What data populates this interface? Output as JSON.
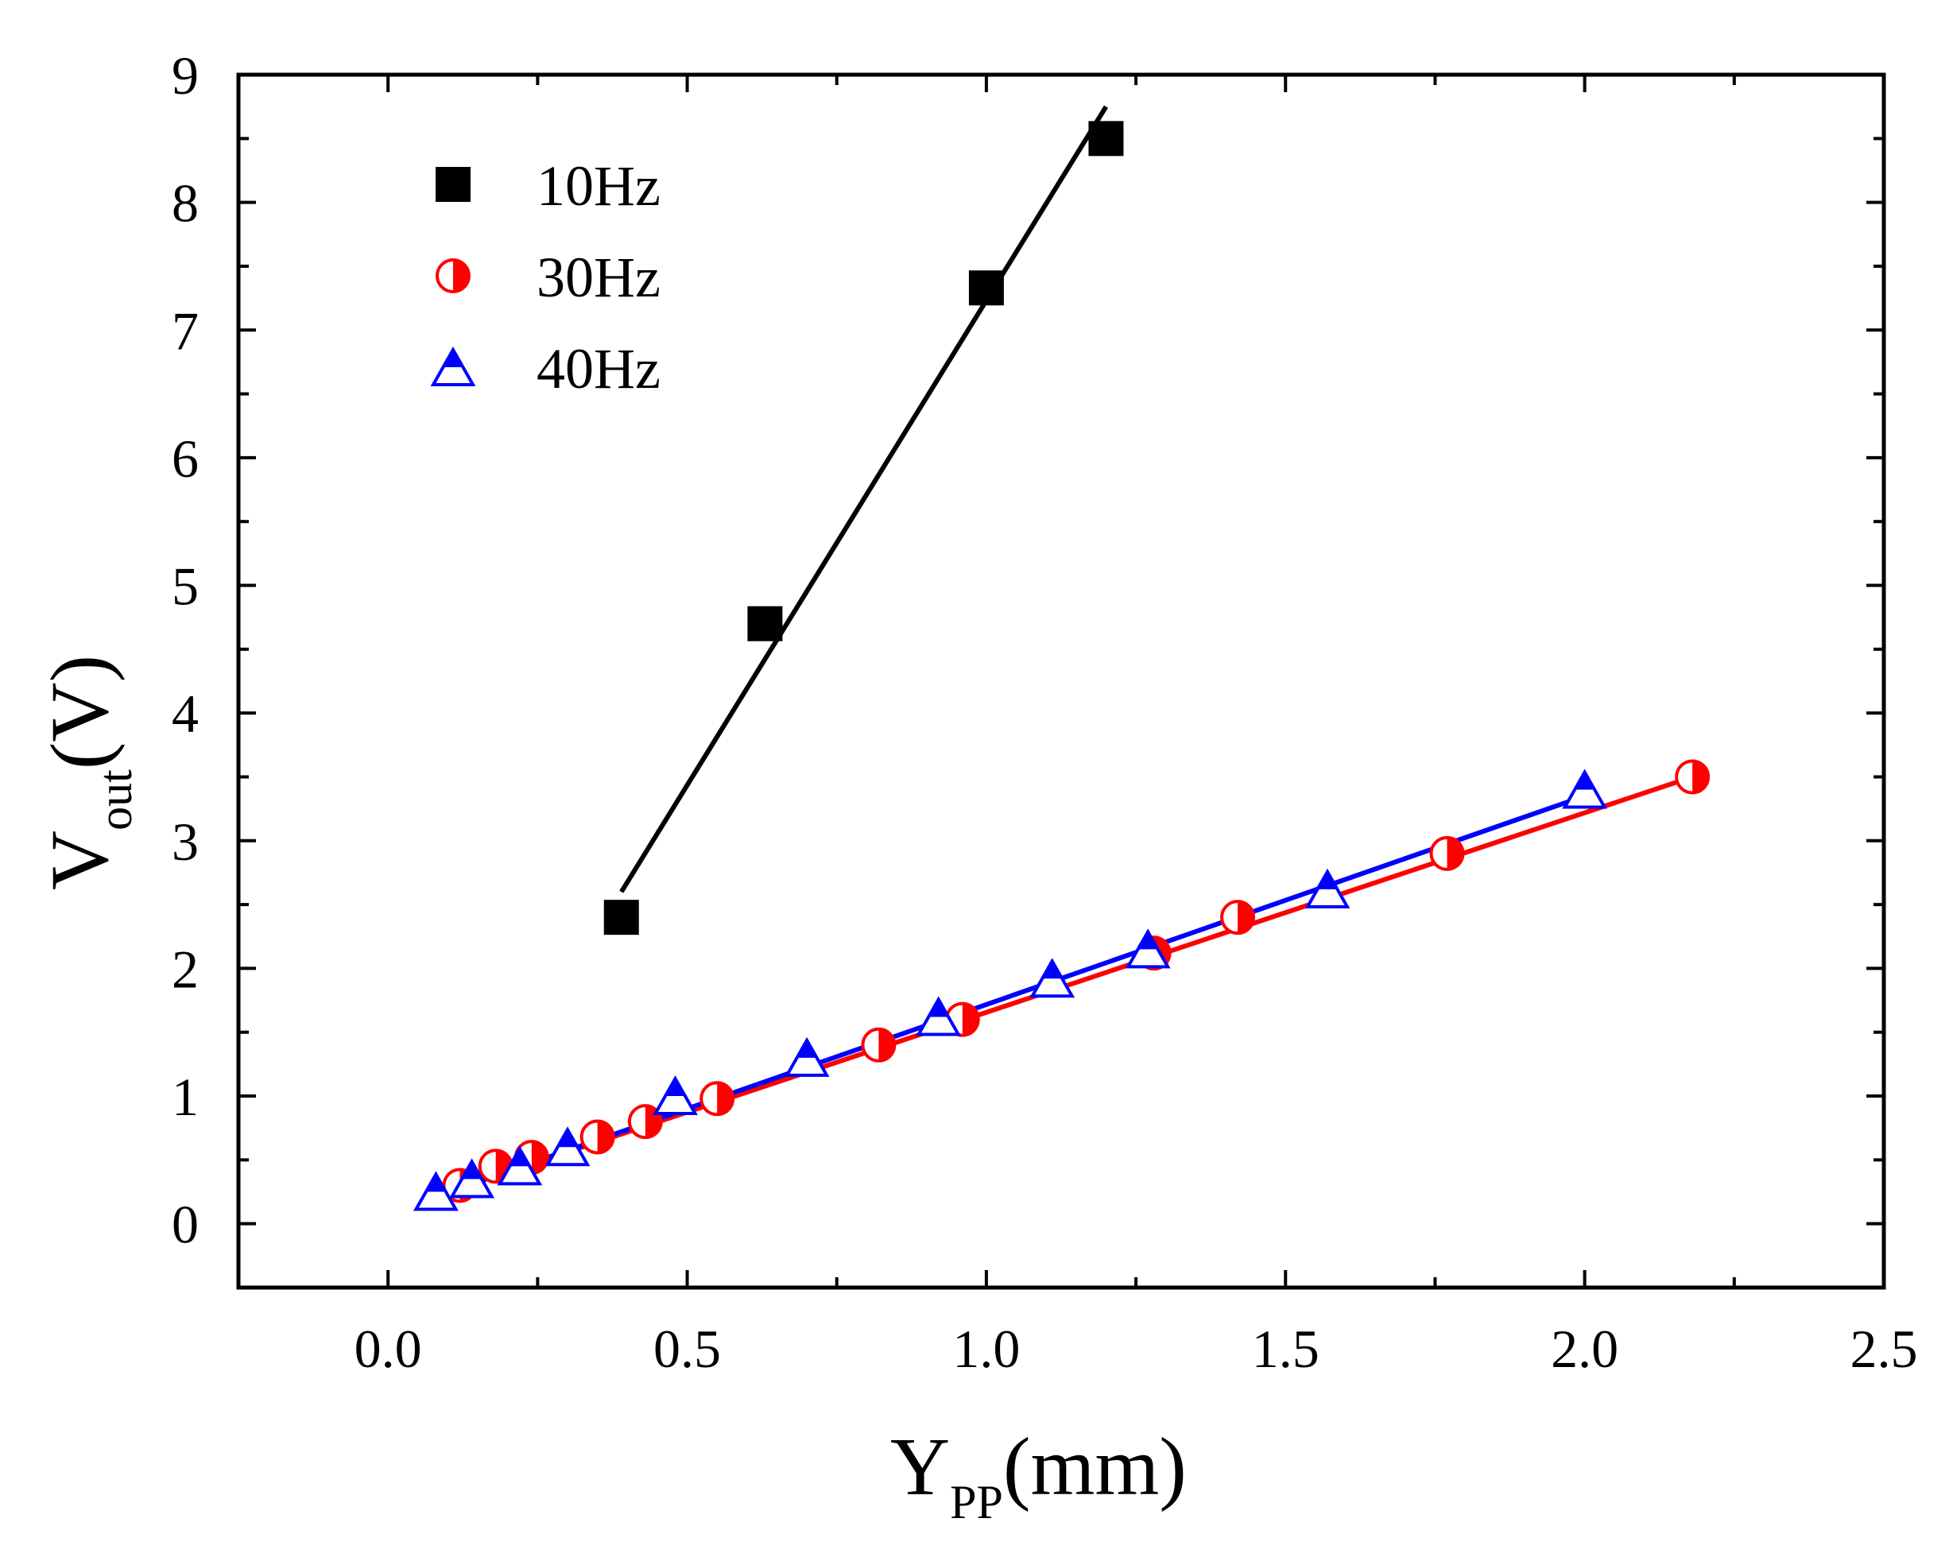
{
  "chart_data": {
    "type": "scatter",
    "title": "",
    "xlabel": {
      "main": "Y",
      "sub": "PP",
      "suffix": "(mm)"
    },
    "ylabel": {
      "main": "V",
      "sub": "out",
      "suffix": "(V)"
    },
    "xlim": [
      -0.25,
      2.5
    ],
    "ylim": [
      -0.5,
      9
    ],
    "xticks": [
      "0.0",
      "0.5",
      "1.0",
      "1.5",
      "2.0",
      "2.5"
    ],
    "yticks": [
      "0",
      "1",
      "2",
      "3",
      "4",
      "5",
      "6",
      "7",
      "8",
      "9"
    ],
    "legend_position": "top-left",
    "series": [
      {
        "name": "10Hz",
        "marker": "square",
        "color": "#000000",
        "x": [
          0.39,
          0.63,
          1.0,
          1.2
        ],
        "y": [
          2.4,
          4.7,
          7.33,
          8.5
        ],
        "fit": {
          "x": [
            0.39,
            1.2
          ],
          "y": [
            2.6,
            8.75
          ]
        }
      },
      {
        "name": "30Hz",
        "marker": "half-circle",
        "color": "#ff0000",
        "x": [
          0.12,
          0.18,
          0.24,
          0.35,
          0.43,
          0.55,
          0.82,
          0.96,
          1.28,
          1.42,
          1.77,
          2.18
        ],
        "y": [
          0.3,
          0.45,
          0.52,
          0.68,
          0.8,
          0.98,
          1.4,
          1.6,
          2.12,
          2.4,
          2.9,
          3.5
        ],
        "fit": {
          "x": [
            0.12,
            2.18
          ],
          "y": [
            0.28,
            3.5
          ]
        }
      },
      {
        "name": "40Hz",
        "marker": "half-triangle",
        "color": "#0000ff",
        "x": [
          0.08,
          0.14,
          0.22,
          0.3,
          0.48,
          0.7,
          0.92,
          1.11,
          1.27,
          1.57,
          2.0
        ],
        "y": [
          0.25,
          0.35,
          0.45,
          0.6,
          1.0,
          1.3,
          1.62,
          1.92,
          2.15,
          2.62,
          3.4
        ],
        "fit": {
          "x": [
            0.12,
            2.0
          ],
          "y": [
            0.28,
            3.35
          ]
        }
      }
    ]
  }
}
